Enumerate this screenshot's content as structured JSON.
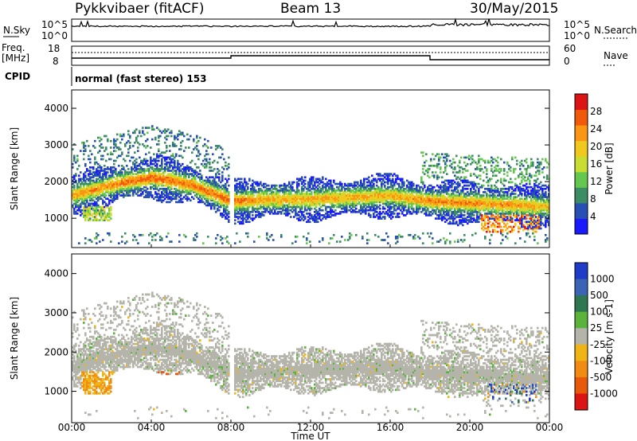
{
  "header": {
    "station": "Pykkvibaer (fitACF)",
    "beam": "Beam 13",
    "date": "30/May/2015"
  },
  "top_panels": {
    "nsky_label": "N.Sky",
    "nsearch_label": "N.Search",
    "noise_ticks": [
      "10^5",
      "10^0"
    ],
    "freq_label": "Freq.",
    "freq_unit": "[MHz]",
    "freq_ticks": [
      "18",
      "8"
    ],
    "nave_label": "Nave",
    "nave_ticks": [
      "60",
      "0"
    ],
    "cpid_label": "CPID",
    "cpid_text": "normal (fast stereo) 153"
  },
  "colors": {
    "power_scale": [
      "#1a1aff",
      "#2850b4",
      "#3c8c64",
      "#64c850",
      "#c8dc32",
      "#f0c81e",
      "#fa9614",
      "#f05a0a",
      "#dc1414"
    ],
    "velocity_scale": [
      "#1e3cc8",
      "#3c64b4",
      "#2d7850",
      "#5ab43c",
      "#b4b4aa",
      "#f0b414",
      "#f08c14",
      "#e65a0a",
      "#dc1414"
    ]
  },
  "chart_data": [
    {
      "type": "heatmap",
      "panel": "power",
      "ylabel": "Slant Range [km]",
      "y_ticks": [
        "1000",
        "2000",
        "3000",
        "4000"
      ],
      "ylim": [
        200,
        4500
      ],
      "colorbar_label": "Power [dB]",
      "colorbar_ticks": [
        "4",
        "8",
        "12",
        "16",
        "20",
        "24",
        "28"
      ],
      "colorbar_range": [
        0,
        32
      ],
      "x_ticks": [
        "00:00",
        "04:00",
        "08:00",
        "12:00",
        "16:00",
        "20:00",
        "00:00"
      ],
      "xlim_hours": [
        0,
        24
      ],
      "main_band": [
        {
          "t": 0,
          "range": 1600,
          "power": 22
        },
        {
          "t": 2,
          "range": 1900,
          "power": 24
        },
        {
          "t": 4,
          "range": 2100,
          "power": 26
        },
        {
          "t": 6,
          "range": 1900,
          "power": 25
        },
        {
          "t": 8,
          "range": 1450,
          "power": 26
        },
        {
          "t": 10,
          "range": 1500,
          "power": 22
        },
        {
          "t": 12,
          "range": 1500,
          "power": 22
        },
        {
          "t": 14,
          "range": 1550,
          "power": 22
        },
        {
          "t": 16,
          "range": 1600,
          "power": 21
        },
        {
          "t": 18,
          "range": 1450,
          "power": 24
        },
        {
          "t": 20,
          "range": 1400,
          "power": 24
        },
        {
          "t": 22,
          "range": 1350,
          "power": 23
        },
        {
          "t": 24,
          "range": 1300,
          "power": 20
        }
      ]
    },
    {
      "type": "heatmap",
      "panel": "velocity",
      "ylabel": "Slant Range [km]",
      "y_ticks": [
        "1000",
        "2000",
        "3000",
        "4000"
      ],
      "ylim": [
        200,
        4500
      ],
      "colorbar_label": "Velocity [m s-1]",
      "colorbar_ticks": [
        "1000",
        "500",
        "100",
        "25",
        "-25",
        "-100",
        "-500",
        "-1000"
      ],
      "x_ticks": [
        "00:00",
        "04:00",
        "08:00",
        "12:00",
        "16:00",
        "20:00",
        "00:00"
      ],
      "xlabel": "Time UT",
      "xlim_hours": [
        0,
        24
      ]
    }
  ]
}
